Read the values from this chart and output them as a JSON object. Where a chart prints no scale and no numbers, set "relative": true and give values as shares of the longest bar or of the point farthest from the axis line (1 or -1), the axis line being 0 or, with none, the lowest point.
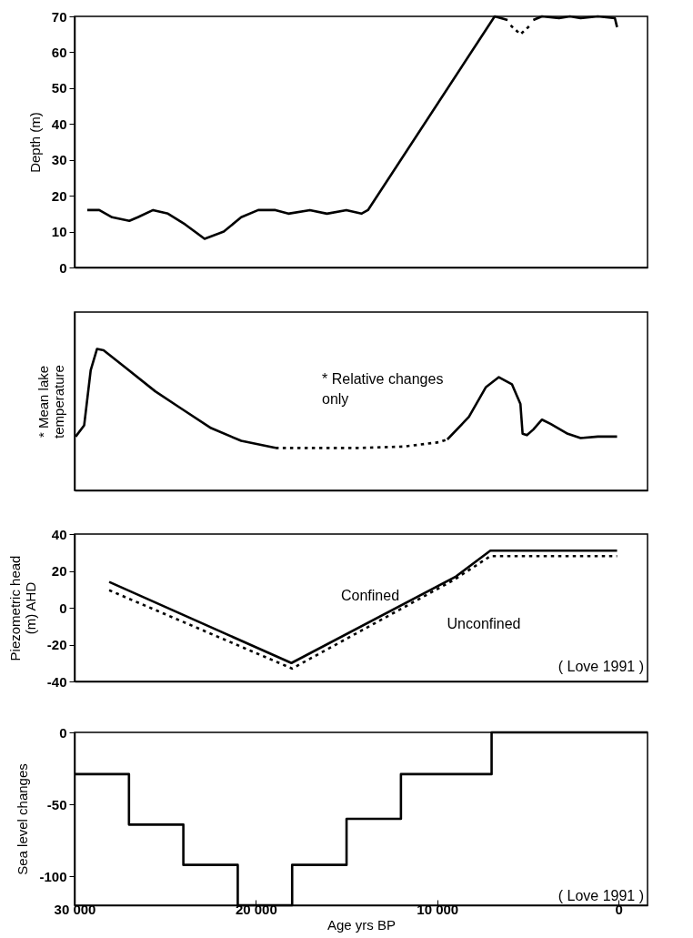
{
  "chart_data": [
    {
      "type": "line",
      "ylabel": "Depth (m)",
      "xlim": [
        30000,
        -1600
      ],
      "ylim": [
        0,
        70
      ],
      "yticks": [
        0,
        10,
        20,
        30,
        40,
        50,
        60,
        70
      ],
      "tick_labels": "y",
      "legend": false,
      "grid": false,
      "series": [
        {
          "color": "#000000",
          "line_style": "solid",
          "x": [
            29300,
            28640,
            27930,
            26980,
            26510,
            25670,
            24850,
            23900,
            22830,
            21770,
            20810,
            19870,
            18920,
            18210,
            17020,
            16080,
            15010,
            14180,
            13820,
            6830,
            6120,
            5410,
            4700,
            4220,
            3280,
            2680,
            2090,
            1140,
            200,
            80
          ],
          "values": [
            16,
            16,
            14,
            13,
            14,
            16,
            15,
            12,
            8,
            10,
            14,
            16,
            16,
            15,
            16,
            15,
            16,
            15,
            16,
            70,
            69,
            null,
            69,
            70,
            69.5,
            70,
            69.5,
            70,
            69.5,
            67
          ]
        },
        {
          "color": "#000000",
          "line_style": "dotted",
          "x": [
            5950,
            5410,
            4870
          ],
          "values": [
            67.5,
            65,
            67.5
          ]
        }
      ]
    },
    {
      "type": "line",
      "ylabel": "* Mean lake\ntemperature",
      "relative": true,
      "xlim": [
        30000,
        -1600
      ],
      "tick_labels": false,
      "legend": false,
      "grid": false,
      "annotations": [
        "* Relative changes\nonly"
      ],
      "series": [
        {
          "color": "#000000",
          "line_style": "solid",
          "x": [
            29940,
            29470,
            29110,
            28760,
            28400,
            27210,
            25550,
            24140,
            22470,
            20810,
            18920
          ],
          "values": [
            0.38,
            0.46,
            0.85,
            1,
            0.99,
            0.87,
            0.7,
            0.58,
            0.44,
            0.35,
            0.3
          ]
        },
        {
          "color": "#000000",
          "line_style": "dotted",
          "x": [
            18920,
            16550,
            14180,
            11810,
            9910,
            9440
          ],
          "values": [
            0.3,
            0.3,
            0.3,
            0.31,
            0.34,
            0.36
          ]
        },
        {
          "color": "#000000",
          "line_style": "solid",
          "x": [
            9440,
            8250,
            7310,
            6600,
            5880,
            5410,
            5290,
            5050,
            4700,
            4220,
            3750,
            2800,
            2090,
            1140,
            80
          ],
          "values": [
            0.36,
            0.52,
            0.73,
            0.8,
            0.75,
            0.61,
            0.4,
            0.39,
            0.43,
            0.5,
            0.47,
            0.4,
            0.37,
            0.38,
            0.38
          ]
        }
      ]
    },
    {
      "type": "line",
      "ylabel": "Piezometric head\n(m) AHD",
      "xlim": [
        30000,
        -1600
      ],
      "ylim": [
        -40,
        40
      ],
      "yticks": [
        -40,
        -20,
        0,
        20,
        40
      ],
      "tick_labels": "y",
      "legend": false,
      "grid": false,
      "annotations": [
        "( Love 1991 )"
      ],
      "series": [
        {
          "name": "Confined",
          "color": "#000000",
          "line_style": "solid",
          "x": [
            28090,
            18040,
            8960,
            7070,
            80
          ],
          "values": [
            14,
            -30,
            17,
            31,
            31
          ]
        },
        {
          "name": "Unconfined",
          "color": "#000000",
          "line_style": "dotted",
          "x": [
            28090,
            18000,
            9100,
            7070,
            80
          ],
          "values": [
            9.5,
            -33,
            15,
            28,
            28
          ]
        }
      ]
    },
    {
      "type": "step",
      "ylabel": "Sea level changes",
      "xlabel": "Age yrs BP",
      "xlim": [
        30000,
        -1600
      ],
      "xticks": [
        {
          "value": 30000,
          "label": "30 000"
        },
        {
          "value": 20000,
          "label": "20 000"
        },
        {
          "value": 10000,
          "label": "10 000"
        },
        0
      ],
      "ylim": [
        -120,
        0
      ],
      "yticks": [
        -100,
        -50,
        0
      ],
      "legend": false,
      "grid": false,
      "annotations": [
        "( Love 1991 )"
      ],
      "series": [
        {
          "color": "#000000",
          "line_style": "solid",
          "x": [
            30000,
            27000,
            24000,
            21000,
            18000,
            15000,
            12000,
            7000,
            -1600
          ],
          "values": [
            -29,
            -64,
            -92,
            -120,
            -92,
            -60,
            -29,
            0,
            0
          ]
        }
      ]
    }
  ]
}
